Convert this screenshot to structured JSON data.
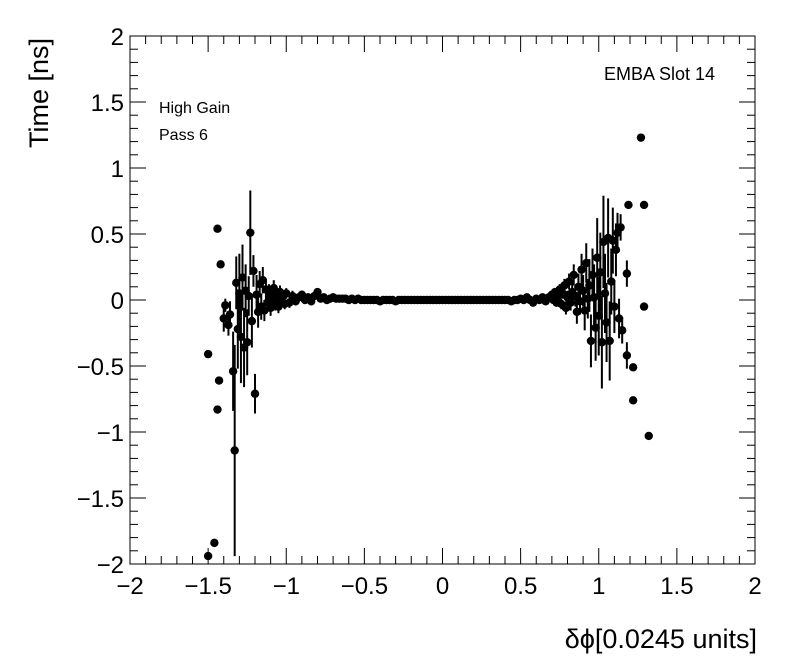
{
  "chart_data": {
    "type": "scatter",
    "title": "",
    "xlabel": "δϕ[0.0245 units]",
    "ylabel": "Time [ns]",
    "xlim": [
      -2,
      2
    ],
    "ylim": [
      -2,
      2
    ],
    "x_ticks": [
      -2,
      -1.5,
      -1,
      -0.5,
      0,
      0.5,
      1,
      1.5,
      2
    ],
    "x_tick_labels": [
      "−2",
      "−1.5",
      "−1",
      "−0.5",
      "0",
      "0.5",
      "1",
      "1.5",
      "2"
    ],
    "y_ticks": [
      -2,
      -1.5,
      -1,
      -0.5,
      0,
      0.5,
      1,
      1.5,
      2
    ],
    "y_tick_labels": [
      "−2",
      "−1.5",
      "−1",
      "−0.5",
      "0",
      "0.5",
      "1",
      "1.5",
      "2"
    ],
    "grid": false,
    "marker_color": "#000000",
    "annotations": {
      "slot_label": "EMBA Slot 14",
      "gain_label": "High Gain",
      "pass_label": "Pass 6"
    },
    "points": [
      {
        "x": -1.5,
        "y": -1.94,
        "err": 0.0
      },
      {
        "x": -1.5,
        "y": -0.41,
        "err": 0.0
      },
      {
        "x": -1.46,
        "y": -1.84,
        "err": 0.0
      },
      {
        "x": -1.44,
        "y": -0.83,
        "err": 0.0
      },
      {
        "x": -1.44,
        "y": 0.54,
        "err": 0.0
      },
      {
        "x": -1.43,
        "y": -0.61,
        "err": 0.0
      },
      {
        "x": -1.42,
        "y": 0.27,
        "err": 0.0
      },
      {
        "x": -1.4,
        "y": -0.14,
        "err": 0.1
      },
      {
        "x": -1.39,
        "y": -0.04,
        "err": 0.05
      },
      {
        "x": -1.37,
        "y": -0.19,
        "err": 0.08
      },
      {
        "x": -1.36,
        "y": -0.11,
        "err": 0.1
      },
      {
        "x": -1.33,
        "y": -1.14,
        "err": 0.8
      },
      {
        "x": -1.34,
        "y": -0.54,
        "err": 0.3
      },
      {
        "x": -1.32,
        "y": 0.13,
        "err": 0.2
      },
      {
        "x": -1.31,
        "y": -0.22,
        "err": 0.3
      },
      {
        "x": -1.3,
        "y": 0.05,
        "err": 0.3
      },
      {
        "x": -1.29,
        "y": -0.28,
        "err": 0.35
      },
      {
        "x": -1.28,
        "y": 0.17,
        "err": 0.25
      },
      {
        "x": -1.27,
        "y": -0.36,
        "err": 0.3
      },
      {
        "x": -1.26,
        "y": 0.07,
        "err": 0.2
      },
      {
        "x": -1.25,
        "y": -0.32,
        "err": 0.25
      },
      {
        "x": -1.24,
        "y": 0.03,
        "err": 0.15
      },
      {
        "x": -1.23,
        "y": 0.51,
        "err": 0.32
      },
      {
        "x": -1.22,
        "y": -0.16,
        "err": 0.2
      },
      {
        "x": -1.21,
        "y": 0.22,
        "err": 0.12
      },
      {
        "x": -1.2,
        "y": -0.71,
        "err": 0.15
      },
      {
        "x": -1.19,
        "y": 0.04,
        "err": 0.15
      },
      {
        "x": -1.18,
        "y": -0.09,
        "err": 0.12
      },
      {
        "x": -1.17,
        "y": 0.12,
        "err": 0.1
      },
      {
        "x": -1.16,
        "y": -0.05,
        "err": 0.1
      },
      {
        "x": -1.15,
        "y": 0.15,
        "err": 0.1
      },
      {
        "x": -1.14,
        "y": -0.08,
        "err": 0.08
      },
      {
        "x": -1.13,
        "y": 0.08,
        "err": 0.08
      },
      {
        "x": -1.12,
        "y": -0.02,
        "err": 0.07
      },
      {
        "x": -1.11,
        "y": 0.05,
        "err": 0.07
      },
      {
        "x": -1.1,
        "y": -0.06,
        "err": 0.06
      },
      {
        "x": -1.09,
        "y": 0.02,
        "err": 0.06
      },
      {
        "x": -1.08,
        "y": 0.09,
        "err": 0.06
      },
      {
        "x": -1.07,
        "y": -0.03,
        "err": 0.05
      },
      {
        "x": -1.06,
        "y": 0.04,
        "err": 0.05
      },
      {
        "x": -1.05,
        "y": -0.05,
        "err": 0.05
      },
      {
        "x": -1.04,
        "y": 0.06,
        "err": 0.05
      },
      {
        "x": -1.03,
        "y": 0.0,
        "err": 0.05
      },
      {
        "x": -1.02,
        "y": 0.03,
        "err": 0.04
      },
      {
        "x": -1.01,
        "y": -0.03,
        "err": 0.04
      },
      {
        "x": -1.0,
        "y": 0.05,
        "err": 0.04
      },
      {
        "x": -0.98,
        "y": -0.02,
        "err": 0.04
      },
      {
        "x": -0.96,
        "y": 0.03,
        "err": 0.04
      },
      {
        "x": -0.94,
        "y": -0.01,
        "err": 0.03
      },
      {
        "x": -0.92,
        "y": 0.02,
        "err": 0.03
      },
      {
        "x": -0.9,
        "y": 0.04,
        "err": 0.03
      },
      {
        "x": -0.88,
        "y": 0.0,
        "err": 0.03
      },
      {
        "x": -0.86,
        "y": 0.02,
        "err": 0.03
      },
      {
        "x": -0.84,
        "y": -0.01,
        "err": 0.03
      },
      {
        "x": -0.82,
        "y": 0.03,
        "err": 0.02
      },
      {
        "x": -0.8,
        "y": 0.06,
        "err": 0.02
      },
      {
        "x": -0.78,
        "y": 0.01,
        "err": 0.02
      },
      {
        "x": -0.76,
        "y": 0.02,
        "err": 0.02
      },
      {
        "x": -0.74,
        "y": 0.0,
        "err": 0.02
      },
      {
        "x": -0.72,
        "y": 0.01,
        "err": 0.02
      },
      {
        "x": -0.7,
        "y": 0.02,
        "err": 0.02
      },
      {
        "x": -0.68,
        "y": 0.01,
        "err": 0.02
      },
      {
        "x": -0.66,
        "y": 0.01,
        "err": 0.01
      },
      {
        "x": -0.64,
        "y": 0.01,
        "err": 0.01
      },
      {
        "x": -0.62,
        "y": 0.01,
        "err": 0.01
      },
      {
        "x": -0.6,
        "y": 0.0,
        "err": 0.01
      },
      {
        "x": -0.58,
        "y": 0.01,
        "err": 0.01
      },
      {
        "x": -0.56,
        "y": 0.0,
        "err": 0.01
      },
      {
        "x": -0.54,
        "y": 0.01,
        "err": 0.01
      },
      {
        "x": -0.52,
        "y": 0.0,
        "err": 0.01
      },
      {
        "x": -0.5,
        "y": 0.0,
        "err": 0.01
      },
      {
        "x": -0.48,
        "y": 0.0,
        "err": 0.01
      },
      {
        "x": -0.46,
        "y": 0.0,
        "err": 0.01
      },
      {
        "x": -0.44,
        "y": 0.0,
        "err": 0.01
      },
      {
        "x": -0.42,
        "y": 0.0,
        "err": 0.01
      },
      {
        "x": -0.4,
        "y": -0.01,
        "err": 0.01
      },
      {
        "x": -0.38,
        "y": 0.0,
        "err": 0.01
      },
      {
        "x": -0.36,
        "y": 0.0,
        "err": 0.01
      },
      {
        "x": -0.34,
        "y": 0.0,
        "err": 0.01
      },
      {
        "x": -0.32,
        "y": 0.0,
        "err": 0.01
      },
      {
        "x": -0.3,
        "y": -0.01,
        "err": 0.01
      },
      {
        "x": -0.28,
        "y": 0.0,
        "err": 0.01
      },
      {
        "x": -0.26,
        "y": 0.0,
        "err": 0.01
      },
      {
        "x": -0.24,
        "y": 0.0,
        "err": 0.01
      },
      {
        "x": -0.22,
        "y": 0.0,
        "err": 0.01
      },
      {
        "x": -0.2,
        "y": 0.0,
        "err": 0.01
      },
      {
        "x": -0.18,
        "y": 0.0,
        "err": 0.01
      },
      {
        "x": -0.16,
        "y": 0.0,
        "err": 0.01
      },
      {
        "x": -0.14,
        "y": 0.0,
        "err": 0.01
      },
      {
        "x": -0.12,
        "y": 0.0,
        "err": 0.01
      },
      {
        "x": -0.1,
        "y": 0.0,
        "err": 0.01
      },
      {
        "x": -0.08,
        "y": 0.0,
        "err": 0.01
      },
      {
        "x": -0.06,
        "y": 0.0,
        "err": 0.01
      },
      {
        "x": -0.04,
        "y": 0.0,
        "err": 0.01
      },
      {
        "x": -0.02,
        "y": 0.0,
        "err": 0.01
      },
      {
        "x": 0.0,
        "y": 0.0,
        "err": 0.01
      },
      {
        "x": 0.02,
        "y": 0.0,
        "err": 0.01
      },
      {
        "x": 0.04,
        "y": 0.0,
        "err": 0.01
      },
      {
        "x": 0.06,
        "y": 0.0,
        "err": 0.01
      },
      {
        "x": 0.08,
        "y": 0.0,
        "err": 0.01
      },
      {
        "x": 0.1,
        "y": 0.0,
        "err": 0.01
      },
      {
        "x": 0.12,
        "y": 0.0,
        "err": 0.01
      },
      {
        "x": 0.14,
        "y": 0.0,
        "err": 0.01
      },
      {
        "x": 0.16,
        "y": 0.0,
        "err": 0.01
      },
      {
        "x": 0.18,
        "y": 0.0,
        "err": 0.01
      },
      {
        "x": 0.2,
        "y": 0.0,
        "err": 0.01
      },
      {
        "x": 0.22,
        "y": 0.0,
        "err": 0.01
      },
      {
        "x": 0.24,
        "y": 0.0,
        "err": 0.01
      },
      {
        "x": 0.26,
        "y": 0.0,
        "err": 0.01
      },
      {
        "x": 0.28,
        "y": 0.0,
        "err": 0.01
      },
      {
        "x": 0.3,
        "y": 0.0,
        "err": 0.01
      },
      {
        "x": 0.32,
        "y": 0.0,
        "err": 0.01
      },
      {
        "x": 0.34,
        "y": 0.0,
        "err": 0.01
      },
      {
        "x": 0.36,
        "y": 0.0,
        "err": 0.01
      },
      {
        "x": 0.38,
        "y": 0.0,
        "err": 0.01
      },
      {
        "x": 0.4,
        "y": 0.0,
        "err": 0.01
      },
      {
        "x": 0.42,
        "y": 0.0,
        "err": 0.01
      },
      {
        "x": 0.44,
        "y": -0.01,
        "err": 0.01
      },
      {
        "x": 0.46,
        "y": 0.0,
        "err": 0.01
      },
      {
        "x": 0.48,
        "y": 0.0,
        "err": 0.01
      },
      {
        "x": 0.5,
        "y": 0.01,
        "err": 0.01
      },
      {
        "x": 0.52,
        "y": 0.0,
        "err": 0.01
      },
      {
        "x": 0.54,
        "y": 0.02,
        "err": 0.01
      },
      {
        "x": 0.56,
        "y": 0.0,
        "err": 0.01
      },
      {
        "x": 0.58,
        "y": -0.02,
        "err": 0.01
      },
      {
        "x": 0.6,
        "y": 0.01,
        "err": 0.02
      },
      {
        "x": 0.62,
        "y": 0.0,
        "err": 0.02
      },
      {
        "x": 0.64,
        "y": 0.02,
        "err": 0.02
      },
      {
        "x": 0.66,
        "y": -0.01,
        "err": 0.02
      },
      {
        "x": 0.68,
        "y": 0.02,
        "err": 0.02
      },
      {
        "x": 0.7,
        "y": 0.04,
        "err": 0.02
      },
      {
        "x": 0.71,
        "y": 0.0,
        "err": 0.03
      },
      {
        "x": 0.72,
        "y": 0.06,
        "err": 0.03
      },
      {
        "x": 0.73,
        "y": -0.02,
        "err": 0.03
      },
      {
        "x": 0.74,
        "y": 0.03,
        "err": 0.03
      },
      {
        "x": 0.75,
        "y": 0.08,
        "err": 0.04
      },
      {
        "x": 0.76,
        "y": -0.03,
        "err": 0.04
      },
      {
        "x": 0.77,
        "y": 0.05,
        "err": 0.04
      },
      {
        "x": 0.78,
        "y": 0.11,
        "err": 0.05
      },
      {
        "x": 0.79,
        "y": -0.06,
        "err": 0.05
      },
      {
        "x": 0.8,
        "y": 0.02,
        "err": 0.05
      },
      {
        "x": 0.81,
        "y": 0.14,
        "err": 0.06
      },
      {
        "x": 0.82,
        "y": -0.02,
        "err": 0.06
      },
      {
        "x": 0.83,
        "y": 0.06,
        "err": 0.07
      },
      {
        "x": 0.84,
        "y": 0.19,
        "err": 0.08
      },
      {
        "x": 0.85,
        "y": 0.03,
        "err": 0.08
      },
      {
        "x": 0.86,
        "y": -0.09,
        "err": 0.09
      },
      {
        "x": 0.87,
        "y": 0.1,
        "err": 0.1
      },
      {
        "x": 0.88,
        "y": -0.01,
        "err": 0.1
      },
      {
        "x": 0.89,
        "y": 0.23,
        "err": 0.12
      },
      {
        "x": 0.9,
        "y": 0.07,
        "err": 0.12
      },
      {
        "x": 0.91,
        "y": -0.08,
        "err": 0.15
      },
      {
        "x": 0.92,
        "y": 0.28,
        "err": 0.15
      },
      {
        "x": 0.93,
        "y": 0.01,
        "err": 0.15
      },
      {
        "x": 0.94,
        "y": 0.11,
        "err": 0.2
      },
      {
        "x": 0.95,
        "y": -0.31,
        "err": 0.2
      },
      {
        "x": 0.96,
        "y": 0.19,
        "err": 0.2
      },
      {
        "x": 0.97,
        "y": 0.02,
        "err": 0.25
      },
      {
        "x": 0.98,
        "y": -0.21,
        "err": 0.25
      },
      {
        "x": 0.99,
        "y": 0.32,
        "err": 0.3
      },
      {
        "x": 1.0,
        "y": -0.12,
        "err": 0.3
      },
      {
        "x": 1.01,
        "y": 0.21,
        "err": 0.3
      },
      {
        "x": 1.02,
        "y": -0.32,
        "err": 0.35
      },
      {
        "x": 1.03,
        "y": 0.44,
        "err": 0.35
      },
      {
        "x": 1.04,
        "y": 0.05,
        "err": 0.3
      },
      {
        "x": 1.05,
        "y": -0.17,
        "err": 0.3
      },
      {
        "x": 1.06,
        "y": 0.47,
        "err": 0.3
      },
      {
        "x": 1.07,
        "y": -0.31,
        "err": 0.3
      },
      {
        "x": 1.08,
        "y": 0.14,
        "err": 0.25
      },
      {
        "x": 1.09,
        "y": 0.45,
        "err": 0.25
      },
      {
        "x": 1.1,
        "y": -0.05,
        "err": 0.2
      },
      {
        "x": 1.11,
        "y": 0.38,
        "err": 0.2
      },
      {
        "x": 1.12,
        "y": 0.51,
        "err": 0.15
      },
      {
        "x": 1.13,
        "y": -0.14,
        "err": 0.15
      },
      {
        "x": 1.14,
        "y": 0.55,
        "err": 0.1
      },
      {
        "x": 1.15,
        "y": -0.23,
        "err": 0.1
      },
      {
        "x": 1.18,
        "y": -0.42,
        "err": 0.1
      },
      {
        "x": 1.18,
        "y": 0.2,
        "err": 0.1
      },
      {
        "x": 1.19,
        "y": 0.72,
        "err": 0.0
      },
      {
        "x": 1.22,
        "y": -0.51,
        "err": 0.0
      },
      {
        "x": 1.22,
        "y": -0.76,
        "err": 0.0
      },
      {
        "x": 1.27,
        "y": 1.23,
        "err": 0.0
      },
      {
        "x": 1.29,
        "y": 0.72,
        "err": 0.0
      },
      {
        "x": 1.29,
        "y": -0.05,
        "err": 0.0
      },
      {
        "x": 1.32,
        "y": -1.03,
        "err": 0.0
      }
    ]
  }
}
